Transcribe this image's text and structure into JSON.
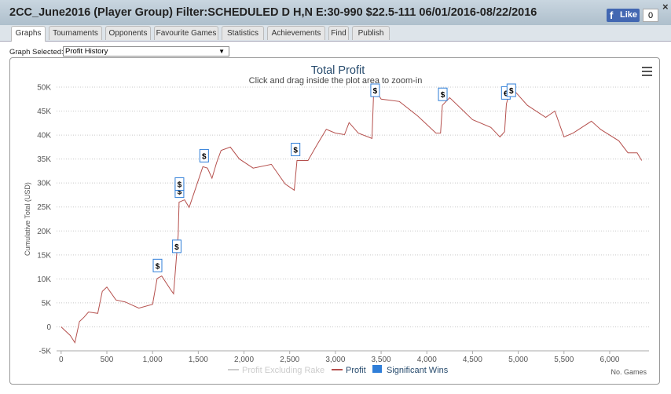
{
  "header": {
    "title": "2CC_June2016 (Player Group) Filter:SCHEDULED D H,N E:30-990 $22.5-111 06/01/2016-08/22/2016",
    "like": "Like",
    "like_count": "0",
    "close": "×"
  },
  "tabs": [
    "Graphs",
    "Tournaments",
    "Opponents",
    "Favourite Games",
    "Statistics",
    "Achievements",
    "Find",
    "Publish"
  ],
  "graph_select": {
    "label": "Graph Selected:",
    "value": "Profit History"
  },
  "chart_data": {
    "type": "line",
    "title": "Total Profit",
    "subtitle": "Click and drag inside the plot area to zoom-in",
    "ylabel": "Cumulative Total (USD)",
    "xlabel": "No. Games",
    "xlim": [
      -50,
      6430
    ],
    "ylim": [
      -5000,
      50000
    ],
    "xticks": [
      0,
      500,
      {
        "value": 1000,
        "label": "1,000"
      },
      {
        "value": 1500,
        "label": "1,500"
      },
      {
        "value": 2000,
        "label": "2,000"
      },
      {
        "value": 2500,
        "label": "2,500"
      },
      {
        "value": 3000,
        "label": "3,000"
      },
      {
        "value": 3500,
        "label": "3,500"
      },
      {
        "value": 4000,
        "label": "4,000"
      },
      {
        "value": 4500,
        "label": "4,500"
      },
      {
        "value": 5000,
        "label": "5,000"
      },
      {
        "value": 5500,
        "label": "5,500"
      },
      {
        "value": 6000,
        "label": "6,000"
      }
    ],
    "yticks": [
      {
        "value": -5000,
        "label": "-5K"
      },
      0,
      {
        "value": 5000,
        "label": "5K"
      },
      {
        "value": 10000,
        "label": "10K"
      },
      {
        "value": 15000,
        "label": "15K"
      },
      {
        "value": 20000,
        "label": "20K"
      },
      {
        "value": 25000,
        "label": "25K"
      },
      {
        "value": 30000,
        "label": "30K"
      },
      {
        "value": 35000,
        "label": "35K"
      },
      {
        "value": 40000,
        "label": "40K"
      },
      {
        "value": 45000,
        "label": "45K"
      },
      {
        "value": 50000,
        "label": "50K"
      }
    ],
    "grid": true,
    "series": [
      {
        "name": "Profit Excluding Rake",
        "color": "#cccccc"
      },
      {
        "name": "Profit",
        "color": "#b5504d",
        "x": [
          0,
          100,
          150,
          200,
          250,
          300,
          400,
          450,
          500,
          600,
          700,
          850,
          1000,
          1050,
          1100,
          1200,
          1230,
          1260,
          1280,
          1290,
          1350,
          1400,
          1450,
          1550,
          1600,
          1650,
          1700,
          1750,
          1850,
          1950,
          2100,
          2300,
          2450,
          2550,
          2580,
          2700,
          2800,
          2900,
          3000,
          3100,
          3150,
          3250,
          3400,
          3420,
          3500,
          3700,
          3900,
          4100,
          4150,
          4170,
          4250,
          4500,
          4700,
          4800,
          4850,
          4870,
          4900,
          4950,
          5100,
          5300,
          5400,
          5500,
          5600,
          5800,
          5900,
          6100,
          6200,
          6300,
          6350
        ],
        "values": [
          0,
          -1800,
          -3300,
          1100,
          2000,
          3100,
          2800,
          7400,
          8300,
          5600,
          5200,
          3900,
          4700,
          10100,
          10600,
          7700,
          6900,
          14200,
          19200,
          26000,
          26500,
          24900,
          27700,
          33400,
          33100,
          31000,
          34200,
          36800,
          37500,
          35000,
          33100,
          33900,
          29800,
          28500,
          34700,
          34700,
          38000,
          41200,
          40400,
          40100,
          42600,
          40400,
          39300,
          49900,
          47500,
          47000,
          44000,
          40400,
          40400,
          46200,
          47800,
          43200,
          41600,
          39600,
          40700,
          46500,
          48600,
          49400,
          46200,
          43700,
          45000,
          39600,
          40400,
          42900,
          41200,
          38800,
          36300,
          36300,
          34700
        ]
      },
      {
        "name": "Significant Wins",
        "color": "#2f7ed8",
        "x": [
          1050,
          1260,
          1290,
          1290,
          1560,
          2560,
          3430,
          4170,
          4860,
          4920
        ],
        "values": [
          10500,
          14500,
          26000,
          27500,
          33400,
          34700,
          49900,
          46200,
          46500,
          48600
        ],
        "flag_labels": [
          "$",
          "$",
          "$",
          "$",
          "$",
          "$",
          "$",
          "$",
          "€",
          "$"
        ]
      }
    ]
  }
}
